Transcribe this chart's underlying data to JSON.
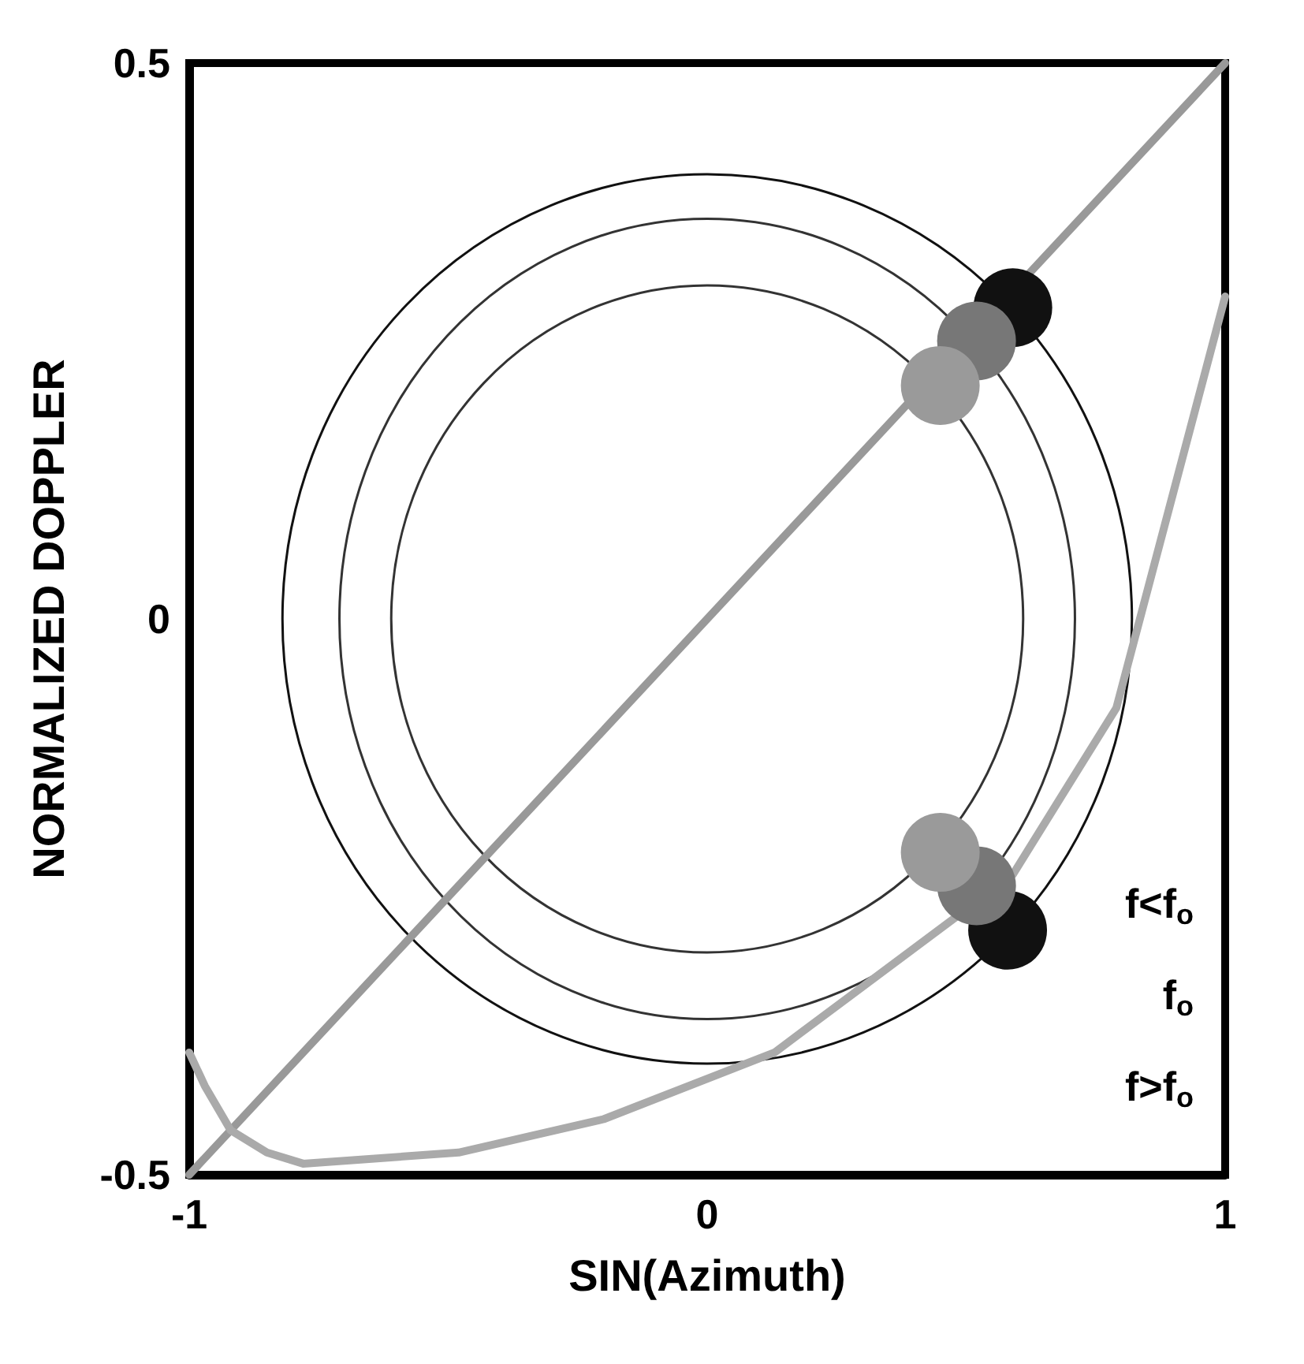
{
  "chart_data": {
    "type": "line",
    "xlabel": "SIN(Azimuth)",
    "ylabel": "NORMALIZED DOPPLER",
    "xlim": [
      -1,
      1
    ],
    "xticks": [
      -1,
      0,
      1
    ],
    "ylim": [
      -0.5,
      0.5
    ],
    "yticks": [
      -0.5,
      0,
      0.5
    ],
    "line_style": "solid",
    "series": [
      {
        "color": "#999999",
        "marker": "none",
        "x": [
          -1,
          1
        ],
        "values": [
          -0.5,
          0.5
        ]
      },
      {
        "color": "#aaaaaa",
        "marker": "none",
        "x": [
          -1.0,
          -0.97,
          -0.92,
          -0.85,
          -0.78,
          -0.48,
          -0.2,
          0.13,
          0.59,
          0.79,
          1.0
        ],
        "values": [
          -0.39,
          -0.42,
          -0.46,
          -0.48,
          -0.49,
          -0.48,
          -0.45,
          -0.39,
          -0.23,
          -0.08,
          0.29
        ]
      },
      {
        "type": "scatter",
        "color": "#111111",
        "marker": "circle",
        "x": [
          0.59,
          0.58
        ],
        "values": [
          0.28,
          -0.28
        ]
      },
      {
        "type": "scatter",
        "color": "#777777",
        "marker": "circle",
        "x": [
          0.52,
          0.52
        ],
        "values": [
          0.25,
          -0.24
        ]
      },
      {
        "type": "scatter",
        "color": "#9a9a9a",
        "marker": "circle",
        "x": [
          0.45,
          0.45
        ],
        "values": [
          0.21,
          -0.21
        ]
      }
    ],
    "annotations": [
      "f<f$_{o}$",
      "f$_{o}$",
      "f>f$_{o}$"
    ]
  }
}
